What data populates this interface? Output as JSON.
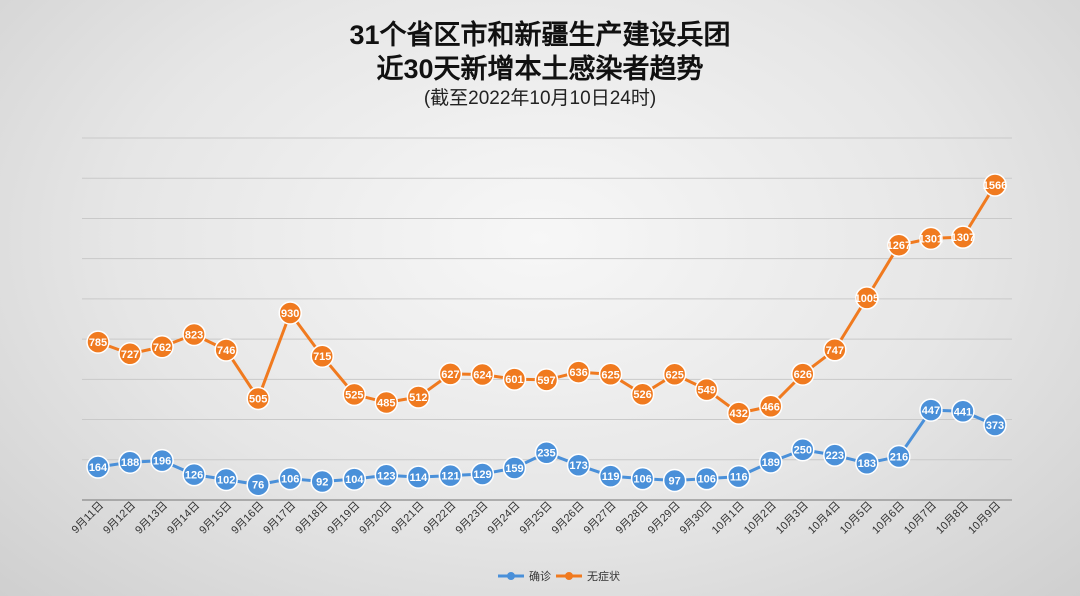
{
  "chart_data": {
    "type": "line",
    "title_line1": "31个省区市和新疆生产建设兵团",
    "title_line2": "近30天新增本土感染者趋势",
    "subtitle": "(截至2022年10月10日24时)",
    "xlabel": "",
    "ylabel": "",
    "ylim": [
      0,
      1800
    ],
    "grid": true,
    "legend_position": "bottom-center",
    "categories": [
      "9月11日",
      "9月12日",
      "9月13日",
      "9月14日",
      "9月15日",
      "9月16日",
      "9月17日",
      "9月18日",
      "9月19日",
      "9月20日",
      "9月21日",
      "9月22日",
      "9月23日",
      "9月24日",
      "9月25日",
      "9月26日",
      "9月27日",
      "9月28日",
      "9月29日",
      "9月30日",
      "10月1日",
      "10月2日",
      "10月3日",
      "10月4日",
      "10月5日",
      "10月6日",
      "10月7日",
      "10月8日",
      "10月9日"
    ],
    "series": [
      {
        "name": "确诊",
        "color": "#4a90d9",
        "values": [
          164,
          188,
          196,
          126,
          102,
          76,
          106,
          92,
          104,
          123,
          114,
          121,
          129,
          159,
          235,
          173,
          119,
          106,
          97,
          106,
          116,
          189,
          250,
          223,
          183,
          216,
          447,
          441,
          373
        ]
      },
      {
        "name": "无症状",
        "color": "#f07a1f",
        "values": [
          785,
          727,
          762,
          823,
          746,
          505,
          930,
          715,
          525,
          485,
          512,
          627,
          624,
          601,
          597,
          636,
          625,
          526,
          625,
          549,
          432,
          466,
          626,
          747,
          1005,
          1267,
          1301,
          1307,
          1566
        ]
      }
    ]
  }
}
